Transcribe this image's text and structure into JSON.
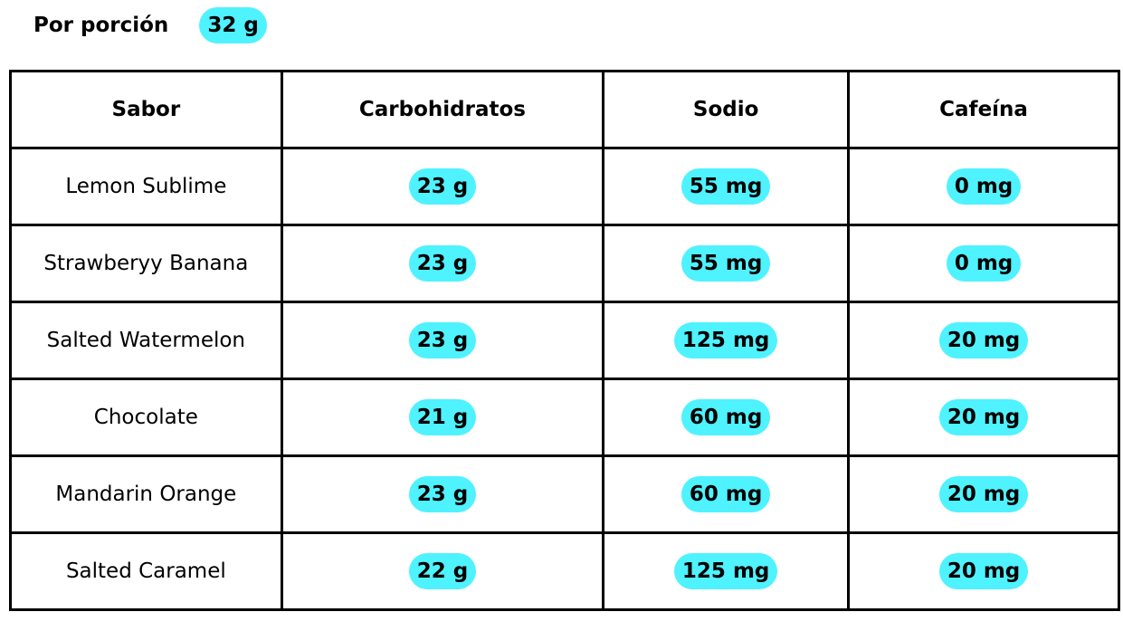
{
  "header": {
    "label": "Por porción",
    "serving": "32 g"
  },
  "table": {
    "columns": [
      "Sabor",
      "Carbohidratos",
      "Sodio",
      "Cafeína"
    ],
    "rows": [
      [
        "Lemon Sublime",
        "23 g",
        "55 mg",
        "0 mg"
      ],
      [
        "Strawberyy Banana",
        "23 g",
        "55 mg",
        "0 mg"
      ],
      [
        "Salted Watermelon",
        "23 g",
        "125 mg",
        "20 mg"
      ],
      [
        "Chocolate",
        "21 g",
        "60 mg",
        "20 mg"
      ],
      [
        "Mandarin Orange",
        "23 g",
        "60 mg",
        "20 mg"
      ],
      [
        "Salted Caramel",
        "22 g",
        "125 mg",
        "20 mg"
      ]
    ]
  }
}
